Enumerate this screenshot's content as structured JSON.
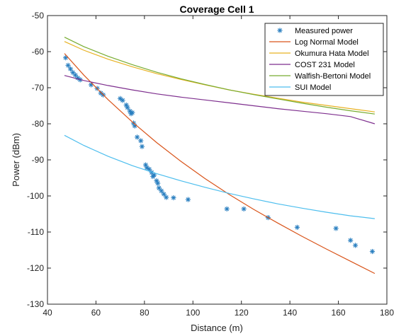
{
  "chart_data": {
    "type": "line",
    "title": "Coverage Cell 1",
    "xlabel": "Distance (m)",
    "ylabel": "Power (dBm)",
    "xlim": [
      40,
      180
    ],
    "ylim": [
      -130,
      -50
    ],
    "xticks": [
      40,
      60,
      80,
      100,
      120,
      140,
      160,
      180
    ],
    "yticks": [
      -130,
      -120,
      -110,
      -100,
      -90,
      -80,
      -70,
      -60,
      -50
    ],
    "grid": false,
    "legend_position": "top-right",
    "series": [
      {
        "name": "Measured power",
        "style": "marker",
        "color": "#2a7fc0",
        "x": [
          47.5,
          48.5,
          49.5,
          50.5,
          51.5,
          52.5,
          53.5,
          58,
          60.5,
          62,
          63,
          70,
          71,
          72.5,
          73,
          74,
          74.5,
          75,
          75.5,
          76,
          77,
          78.5,
          79,
          80.5,
          81,
          82,
          83,
          83.5,
          84,
          85,
          85.5,
          86,
          87,
          88,
          89,
          92,
          98,
          114,
          121,
          131,
          143,
          159,
          165,
          167,
          174
        ],
        "y": [
          -61.7,
          -63.8,
          -64.8,
          -65.8,
          -66.5,
          -67.3,
          -67.8,
          -69.2,
          -70.2,
          -71.5,
          -72,
          -73,
          -73.5,
          -74.8,
          -75.5,
          -76.5,
          -77.2,
          -76.9,
          -79.8,
          -80.6,
          -83.7,
          -84.7,
          -86.3,
          -91.4,
          -92.2,
          -92.6,
          -93.5,
          -94.6,
          -94.2,
          -95.8,
          -96.5,
          -97.8,
          -98.6,
          -99.5,
          -100.4,
          -100.5,
          -101,
          -103.6,
          -103.6,
          -106,
          -108.7,
          -109,
          -112.3,
          -113.7,
          -115.4
        ]
      },
      {
        "name": "Log Normal Model",
        "style": "line",
        "color": "#d9541a",
        "x": [
          47,
          55,
          65,
          75,
          85,
          95,
          105,
          115,
          125,
          135,
          145,
          155,
          165,
          175
        ],
        "y": [
          -60.5,
          -66.5,
          -73.3,
          -79.5,
          -85.2,
          -90.4,
          -95.2,
          -99.6,
          -103.7,
          -107.5,
          -111.2,
          -114.7,
          -118.1,
          -121.5
        ]
      },
      {
        "name": "Okumura Hata Model",
        "style": "line",
        "color": "#e8b223",
        "x": [
          47,
          55,
          65,
          75,
          85,
          95,
          105,
          115,
          125,
          135,
          145,
          155,
          165,
          175
        ],
        "y": [
          -57.2,
          -59.6,
          -62.1,
          -64.2,
          -66.1,
          -67.7,
          -69.2,
          -70.6,
          -71.8,
          -72.9,
          -74.0,
          -74.9,
          -75.8,
          -76.7
        ]
      },
      {
        "name": "COST 231 Model",
        "style": "line",
        "color": "#7e2f8e",
        "x": [
          47,
          55,
          65,
          75,
          85,
          95,
          105,
          115,
          125,
          135,
          145,
          155,
          165,
          175
        ],
        "y": [
          -66.6,
          -68.0,
          -69.4,
          -70.6,
          -71.7,
          -72.6,
          -73.4,
          -74.2,
          -75.0,
          -75.8,
          -76.5,
          -77.2,
          -78.0,
          -80.0
        ]
      },
      {
        "name": "Walfish-Bertoni Model",
        "style": "line",
        "color": "#77ac30",
        "x": [
          47,
          55,
          65,
          75,
          85,
          95,
          105,
          115,
          125,
          135,
          145,
          155,
          165,
          175
        ],
        "y": [
          -56.0,
          -58.6,
          -61.3,
          -63.6,
          -65.7,
          -67.5,
          -69.1,
          -70.6,
          -71.9,
          -73.1,
          -74.3,
          -75.4,
          -76.4,
          -77.3
        ]
      },
      {
        "name": "SUI Model",
        "style": "line",
        "color": "#4dbeee",
        "x": [
          47,
          55,
          65,
          75,
          85,
          95,
          105,
          115,
          125,
          135,
          145,
          155,
          165,
          175
        ],
        "y": [
          -83.2,
          -86.0,
          -89.0,
          -91.6,
          -93.8,
          -95.8,
          -97.6,
          -99.3,
          -100.8,
          -102.2,
          -103.4,
          -104.5,
          -105.5,
          -106.3
        ]
      }
    ]
  }
}
